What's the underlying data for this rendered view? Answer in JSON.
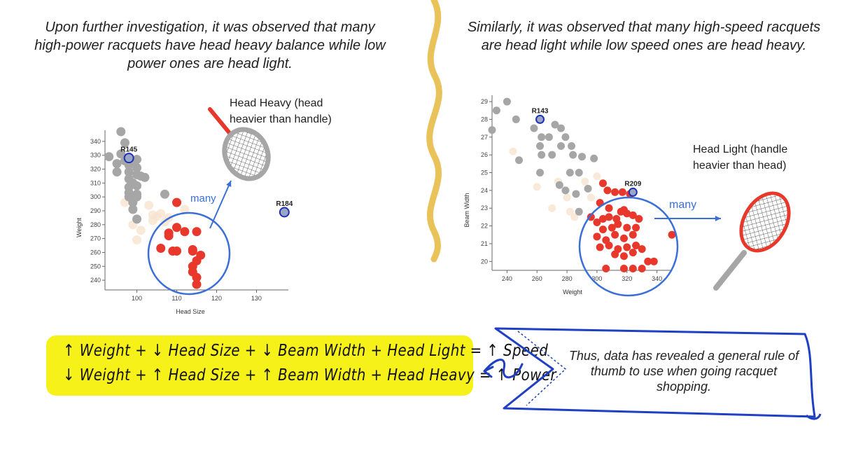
{
  "captions": {
    "left": "Upon further investigation, it was observed that many high-power racquets have head heavy balance while low power ones are head light.",
    "right": "Similarly, it was observed that many high-speed racquets are head light while low speed ones are head heavy."
  },
  "annotations": {
    "head_heavy": "Head Heavy (head heavier than handle)",
    "head_light": "Head Light (handle heavier than head)",
    "many_left": "many",
    "many_right": "many"
  },
  "formula": {
    "row1": "↑ Weight + ↓ Head Size + ↓ Beam Width + Head Light = ↑ Speed",
    "row2": "↓ Weight + ↑ Head Size + ↑ Beam Width + Head Heavy = ↑ Power"
  },
  "conclusion": "Thus, data has revealed a general rule of thumb to use when going racquet shopping.",
  "colors": {
    "red": "#e8372b",
    "grey": "#a6a6a6",
    "highlight_fill": "#9aa7c4",
    "highlight_stroke": "#1d2fb5",
    "circle": "#3a6fd8",
    "faint": "#f6e3cf",
    "yellow": "#f6f118",
    "divider": "#e9c25a",
    "ribbon": "#1f3fc4"
  },
  "chart_data": [
    {
      "type": "scatter",
      "title": "",
      "xlabel": "Head Size",
      "ylabel": "Weight",
      "xlim": [
        92,
        138
      ],
      "ylim": [
        233,
        346
      ],
      "x_ticks": [
        100,
        110,
        120,
        130
      ],
      "x_tick_labels": [
        "100",
        "110",
        "120",
        "130"
      ],
      "y_ticks": [
        240,
        250,
        260,
        270,
        280,
        290,
        300,
        310,
        320,
        330,
        340
      ],
      "y_tick_labels": [
        "240",
        "250",
        "260",
        "270",
        "280",
        "290",
        "300",
        "310",
        "320",
        "330",
        "340"
      ],
      "highlighted": [
        {
          "label": "R145",
          "x": 98,
          "y": 328
        },
        {
          "label": "R184",
          "x": 137,
          "y": 289
        }
      ],
      "series": [
        {
          "color": "grey",
          "points": [
            [
              97,
              339
            ],
            [
              93,
              329
            ],
            [
              96,
              331
            ],
            [
              95,
              324
            ],
            [
              95,
              318
            ],
            [
              97,
              326
            ],
            [
              98,
              323
            ],
            [
              98,
              318
            ],
            [
              98,
              313
            ],
            [
              99,
              326
            ],
            [
              100,
              327
            ],
            [
              100,
              321
            ],
            [
              100,
              316
            ],
            [
              99,
              310
            ],
            [
              98,
              307
            ],
            [
              98,
              303
            ],
            [
              98,
              300
            ],
            [
              99,
              296
            ],
            [
              100,
              308
            ],
            [
              100,
              302
            ],
            [
              101,
              315
            ],
            [
              102,
              314
            ],
            [
              100,
              300
            ],
            [
              99,
              291
            ],
            [
              100,
              284
            ],
            [
              107,
              302
            ],
            [
              96,
              347
            ]
          ]
        },
        {
          "color": "red",
          "points": [
            [
              110,
              296
            ],
            [
              110,
              278
            ],
            [
              108,
              274
            ],
            [
              112,
              275
            ],
            [
              115,
              275
            ],
            [
              114,
              262
            ],
            [
              106,
              263
            ],
            [
              109,
              261
            ],
            [
              110,
              261
            ],
            [
              114,
              261
            ],
            [
              116,
              258
            ],
            [
              114,
              250
            ],
            [
              114,
              246
            ],
            [
              115,
              254
            ],
            [
              115,
              242
            ],
            [
              115,
              237
            ],
            [
              108,
              272
            ]
          ]
        },
        {
          "color": "faint",
          "points": [
            [
              104,
              283
            ],
            [
              103,
              294
            ],
            [
              105,
              286
            ],
            [
              107,
              282
            ],
            [
              108,
              285
            ],
            [
              97,
              296
            ],
            [
              99,
              280
            ],
            [
              101,
              276
            ],
            [
              104,
              287
            ],
            [
              112,
              291
            ],
            [
              100,
              269
            ],
            [
              106,
              288
            ]
          ]
        }
      ]
    },
    {
      "type": "scatter",
      "title": "",
      "xlabel": "Weight",
      "ylabel": "Beam Width",
      "xlim": [
        230,
        350
      ],
      "ylim": [
        19.5,
        29.2
      ],
      "x_ticks": [
        240,
        260,
        280,
        300,
        320,
        340
      ],
      "x_tick_labels": [
        "240",
        "260",
        "280",
        "300",
        "320",
        "340"
      ],
      "y_ticks": [
        20,
        21,
        22,
        23,
        24,
        25,
        26,
        27,
        28,
        29
      ],
      "y_tick_labels": [
        "20",
        "21",
        "22",
        "23",
        "24",
        "25",
        "26",
        "27",
        "28",
        "29"
      ],
      "highlighted": [
        {
          "label": "R143",
          "x": 262,
          "y": 28
        },
        {
          "label": "R209",
          "x": 324,
          "y": 23.9
        }
      ],
      "series": [
        {
          "color": "grey",
          "points": [
            [
              240,
              29
            ],
            [
              233,
              28.5
            ],
            [
              246,
              28
            ],
            [
              258,
              27.5
            ],
            [
              263,
              27
            ],
            [
              268,
              27
            ],
            [
              272,
              27.7
            ],
            [
              276,
              27.5
            ],
            [
              279,
              27
            ],
            [
              283,
              26.5
            ],
            [
              262,
              26.5
            ],
            [
              263,
              26
            ],
            [
              270,
              26
            ],
            [
              276,
              26.5
            ],
            [
              284,
              26
            ],
            [
              290,
              25.9
            ],
            [
              298,
              25.8
            ],
            [
              248,
              25.7
            ],
            [
              262,
              25
            ],
            [
              282,
              25
            ],
            [
              288,
              25
            ],
            [
              275,
              24.3
            ],
            [
              279,
              24
            ],
            [
              286,
              23.8
            ],
            [
              294,
              24.1
            ],
            [
              288,
              22.8
            ],
            [
              230,
              27.4
            ]
          ]
        },
        {
          "color": "red",
          "points": [
            [
              304,
              24.4
            ],
            [
              307,
              24
            ],
            [
              312,
              23.9
            ],
            [
              317,
              23.9
            ],
            [
              322,
              23.8
            ],
            [
              302,
              23.3
            ],
            [
              308,
              23
            ],
            [
              318,
              22.9
            ],
            [
              296,
              22.5
            ],
            [
              300,
              22.2
            ],
            [
              304,
              22.4
            ],
            [
              308,
              22.5
            ],
            [
              313,
              22.4
            ],
            [
              316,
              22.8
            ],
            [
              320,
              22.7
            ],
            [
              324,
              22.6
            ],
            [
              328,
              22.4
            ],
            [
              304,
              21.8
            ],
            [
              310,
              21.9
            ],
            [
              314,
              22.1
            ],
            [
              320,
              21.9
            ],
            [
              326,
              21.9
            ],
            [
              300,
              21.4
            ],
            [
              306,
              21.2
            ],
            [
              312,
              21.5
            ],
            [
              318,
              21.3
            ],
            [
              324,
              21.5
            ],
            [
              302,
              20.8
            ],
            [
              308,
              20.9
            ],
            [
              314,
              20.7
            ],
            [
              320,
              20.8
            ],
            [
              326,
              20.9
            ],
            [
              330,
              20.7
            ],
            [
              312,
              20.4
            ],
            [
              318,
              20.3
            ],
            [
              324,
              20.5
            ],
            [
              334,
              20
            ],
            [
              338,
              20
            ],
            [
              306,
              19.6
            ],
            [
              318,
              19.6
            ],
            [
              324,
              19.6
            ],
            [
              330,
              19.6
            ],
            [
              350,
              21.5
            ]
          ]
        },
        {
          "color": "faint",
          "points": [
            [
              274,
              24.5
            ],
            [
              280,
              23.6
            ],
            [
              292,
              24.5
            ],
            [
              285,
              22.5
            ],
            [
              296,
              23.6
            ],
            [
              270,
              23
            ],
            [
              300,
              24.8
            ],
            [
              260,
              24.2
            ],
            [
              244,
              26.2
            ],
            [
              282,
              22.8
            ]
          ]
        }
      ]
    }
  ]
}
